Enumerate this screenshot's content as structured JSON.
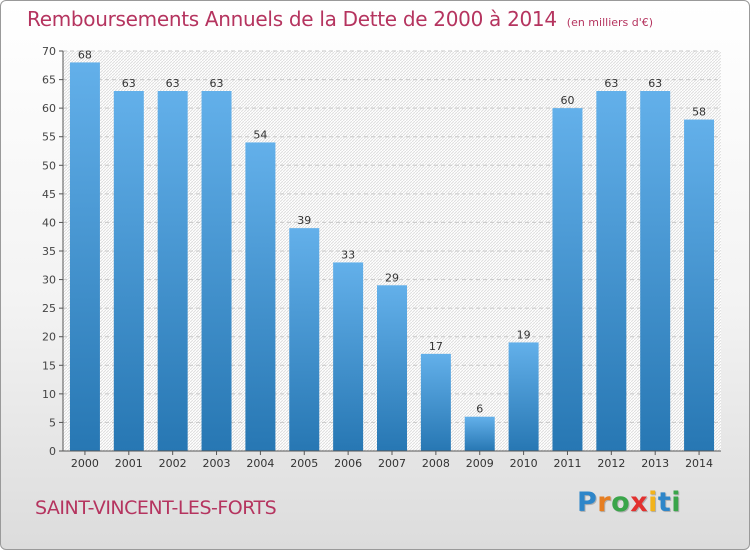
{
  "title": "Remboursements Annuels de la Dette de 2000 à 2014",
  "unit": "(en milliers d'€)",
  "commune": "SAINT-VINCENT-LES-FORTS",
  "logo": {
    "letters": [
      "P",
      "r",
      "o",
      "x",
      "i",
      "t",
      "i"
    ],
    "colors": [
      "#2e86c9",
      "#e67e22",
      "#3aa54a",
      "#e2312f",
      "#f2b31b",
      "#2e86c9",
      "#3aa54a"
    ]
  },
  "colors": {
    "accent": "#b5345f",
    "bar_top": "#63b0ea",
    "bar_bottom": "#2777b3"
  },
  "chart_data": {
    "type": "bar",
    "title": "Remboursements Annuels de la Dette de 2000 à 2014",
    "xlabel": "",
    "ylabel": "en milliers d'€",
    "categories": [
      "2000",
      "2001",
      "2002",
      "2003",
      "2004",
      "2005",
      "2006",
      "2007",
      "2008",
      "2009",
      "2010",
      "2011",
      "2012",
      "2013",
      "2014"
    ],
    "values": [
      68,
      63,
      63,
      63,
      54,
      39,
      33,
      29,
      17,
      6,
      19,
      60,
      63,
      63,
      58
    ],
    "ylim": [
      0,
      70
    ],
    "yticks": [
      0,
      5,
      10,
      15,
      20,
      25,
      30,
      35,
      40,
      45,
      50,
      55,
      60,
      65,
      70
    ],
    "grid": true
  }
}
